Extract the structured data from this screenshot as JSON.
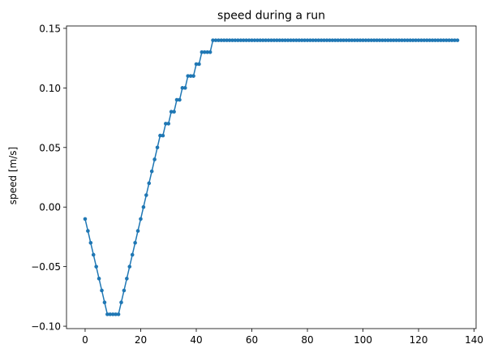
{
  "chart_data": {
    "type": "line",
    "title": "speed during a run",
    "xlabel": "",
    "ylabel": "speed [m/s]",
    "xlim": [
      -6.7,
      140.7
    ],
    "ylim": [
      -0.102,
      0.152
    ],
    "x_ticks": [
      0,
      20,
      40,
      60,
      80,
      100,
      120,
      140
    ],
    "y_ticks": [
      -0.1,
      -0.05,
      0.0,
      0.05,
      0.1,
      0.15
    ],
    "x_tick_labels": [
      "0",
      "20",
      "40",
      "60",
      "80",
      "100",
      "120",
      "140"
    ],
    "y_tick_labels": [
      "−0.10",
      "−0.05",
      "0.00",
      "0.05",
      "0.10",
      "0.15"
    ],
    "grid": false,
    "legend": "none",
    "marker": "dot",
    "color": "#1f77b4",
    "series": [
      {
        "x": [
          0,
          1,
          2,
          3,
          4,
          5,
          6,
          7,
          8,
          9,
          10,
          11,
          12,
          13,
          14,
          15,
          16,
          17,
          18,
          19,
          20,
          21,
          22,
          23,
          24,
          25,
          26,
          27,
          28,
          29,
          30,
          31,
          32,
          33,
          34,
          35,
          36,
          37,
          38,
          39,
          40,
          41,
          42,
          43,
          44,
          45,
          46,
          47,
          48,
          49,
          50,
          51,
          52,
          53,
          54,
          55,
          56,
          57,
          58,
          59,
          60,
          61,
          62,
          63,
          64,
          65,
          66,
          67,
          68,
          69,
          70,
          71,
          72,
          73,
          74,
          75,
          76,
          77,
          78,
          79,
          80,
          81,
          82,
          83,
          84,
          85,
          86,
          87,
          88,
          89,
          90,
          91,
          92,
          93,
          94,
          95,
          96,
          97,
          98,
          99,
          100,
          101,
          102,
          103,
          104,
          105,
          106,
          107,
          108,
          109,
          110,
          111,
          112,
          113,
          114,
          115,
          116,
          117,
          118,
          119,
          120,
          121,
          122,
          123,
          124,
          125,
          126,
          127,
          128,
          129,
          130,
          131,
          132,
          133,
          134
        ],
        "values": [
          -0.01,
          -0.02,
          -0.03,
          -0.04,
          -0.05,
          -0.06,
          -0.07,
          -0.08,
          -0.09,
          -0.09,
          -0.09,
          -0.09,
          -0.09,
          -0.08,
          -0.07,
          -0.06,
          -0.05,
          -0.04,
          -0.03,
          -0.02,
          -0.01,
          0.0,
          0.01,
          0.02,
          0.03,
          0.04,
          0.05,
          0.06,
          0.06,
          0.07,
          0.07,
          0.08,
          0.08,
          0.09,
          0.09,
          0.1,
          0.1,
          0.11,
          0.11,
          0.11,
          0.12,
          0.12,
          0.13,
          0.13,
          0.13,
          0.13,
          0.14,
          0.14,
          0.14,
          0.14,
          0.14,
          0.14,
          0.14,
          0.14,
          0.14,
          0.14,
          0.14,
          0.14,
          0.14,
          0.14,
          0.14,
          0.14,
          0.14,
          0.14,
          0.14,
          0.14,
          0.14,
          0.14,
          0.14,
          0.14,
          0.14,
          0.14,
          0.14,
          0.14,
          0.14,
          0.14,
          0.14,
          0.14,
          0.14,
          0.14,
          0.14,
          0.14,
          0.14,
          0.14,
          0.14,
          0.14,
          0.14,
          0.14,
          0.14,
          0.14,
          0.14,
          0.14,
          0.14,
          0.14,
          0.14,
          0.14,
          0.14,
          0.14,
          0.14,
          0.14,
          0.14,
          0.14,
          0.14,
          0.14,
          0.14,
          0.14,
          0.14,
          0.14,
          0.14,
          0.14,
          0.14,
          0.14,
          0.14,
          0.14,
          0.14,
          0.14,
          0.14,
          0.14,
          0.14,
          0.14,
          0.14,
          0.14,
          0.14,
          0.14,
          0.14,
          0.14,
          0.14,
          0.14,
          0.14,
          0.14,
          0.14,
          0.14,
          0.14,
          0.14,
          0.14
        ]
      }
    ]
  }
}
